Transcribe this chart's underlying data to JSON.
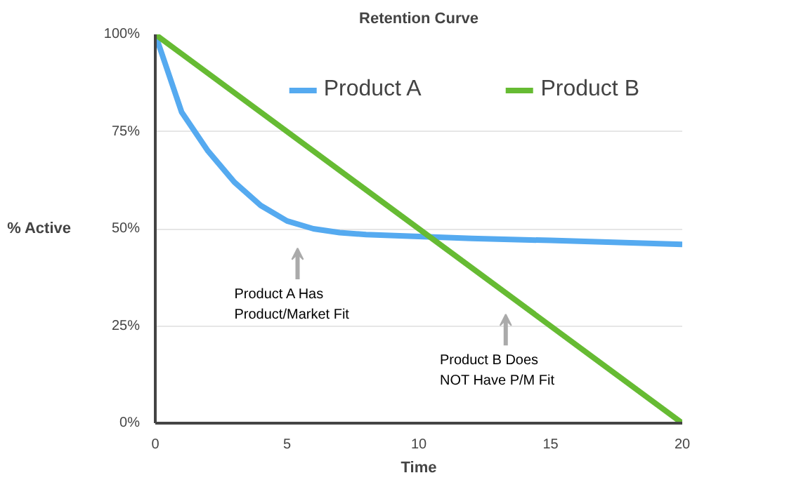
{
  "chart_data": {
    "type": "line",
    "title": "Retention Curve",
    "xlabel": "Time",
    "ylabel": "% Active",
    "xlim": [
      0,
      20
    ],
    "xticks": [
      0,
      5,
      10,
      15,
      20
    ],
    "ylim": [
      0,
      100
    ],
    "yticks": [
      {
        "value": 0,
        "label": "0%"
      },
      {
        "value": 25,
        "label": "25%"
      },
      {
        "value": 50,
        "label": "50%"
      },
      {
        "value": 75,
        "label": "75%"
      },
      {
        "value": 100,
        "label": "100%"
      }
    ],
    "grid": "y",
    "legend": "top right",
    "marker": "none",
    "line_style": "solid",
    "series": [
      {
        "name": "Product A",
        "color": "#55aaf0",
        "x": [
          0,
          1,
          2,
          3,
          4,
          5,
          6,
          7,
          8,
          10,
          12,
          15,
          20
        ],
        "values": [
          100,
          80,
          70,
          62,
          56,
          52,
          50,
          49,
          48.5,
          48,
          47.5,
          47,
          46
        ]
      },
      {
        "name": "Product B",
        "color": "#66bb33",
        "x": [
          0,
          20
        ],
        "values": [
          100,
          0
        ]
      }
    ],
    "annotations": [
      "Product A Has\nProduct/Market Fit",
      "Product B Does\nNOT Have P/M Fit"
    ]
  }
}
